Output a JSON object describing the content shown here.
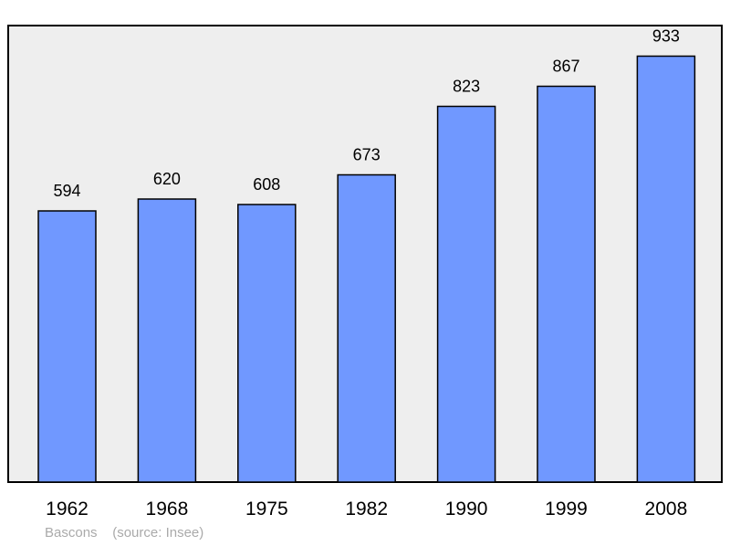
{
  "chart_data": {
    "type": "bar",
    "categories": [
      "1962",
      "1968",
      "1975",
      "1982",
      "1990",
      "1999",
      "2008"
    ],
    "values": [
      594,
      620,
      608,
      673,
      823,
      867,
      933
    ],
    "ylim": [
      0,
      1000
    ],
    "grid": false,
    "colors": {
      "bar": "#7098ff",
      "bar_stroke": "#000000",
      "plot_background": "#eeeeee",
      "frame": "#000000"
    }
  },
  "footer": {
    "place": "Bascons",
    "source": "(source: Insee)"
  }
}
